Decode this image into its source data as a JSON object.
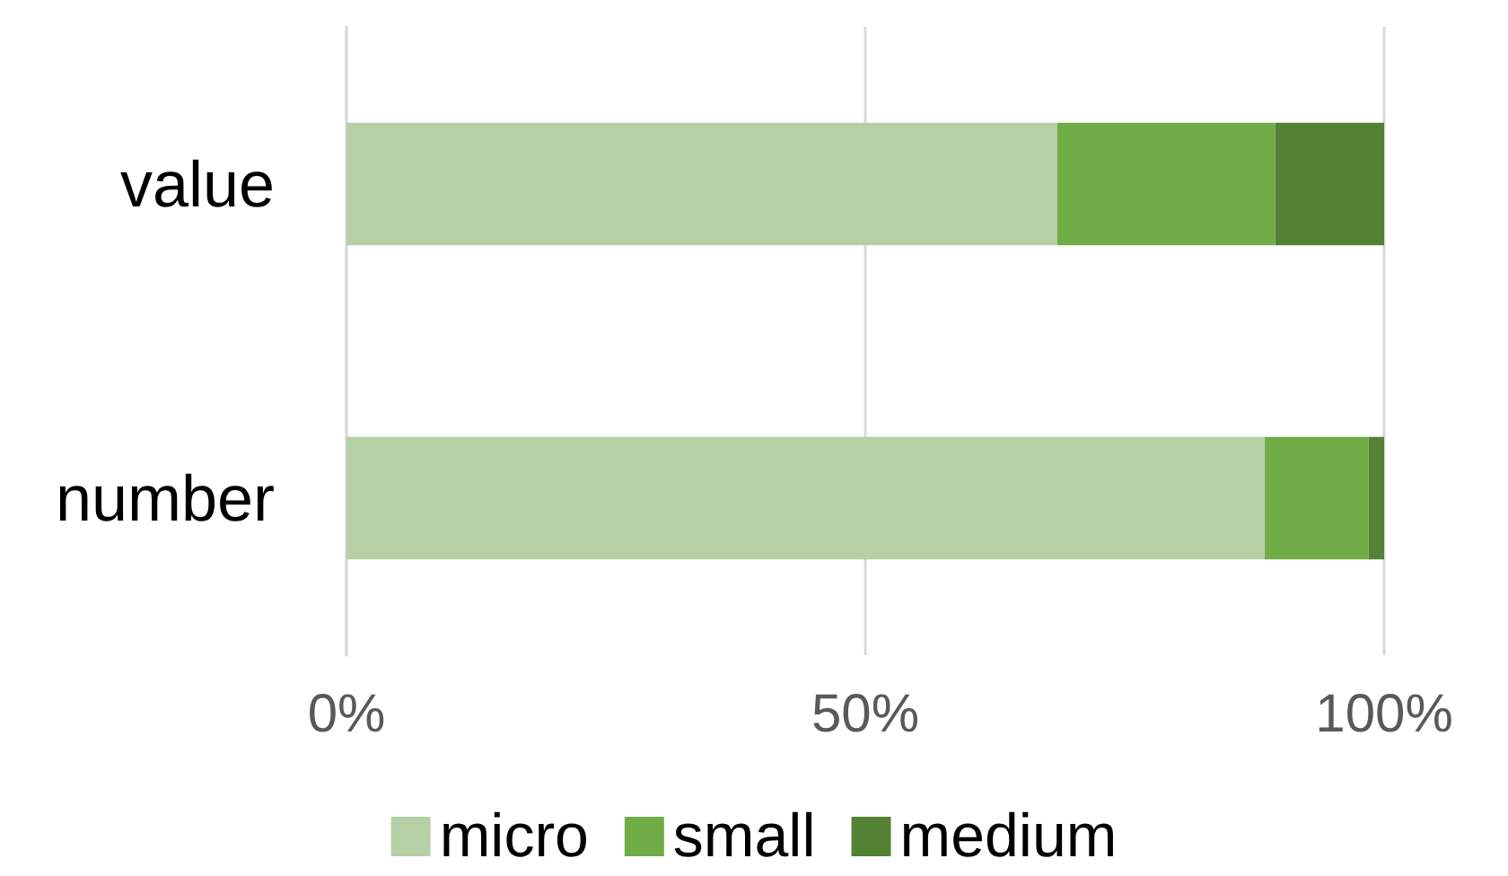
{
  "chart_data": {
    "type": "bar",
    "orientation": "horizontal",
    "stacked": true,
    "categories": [
      "value",
      "number"
    ],
    "series": [
      {
        "name": "micro",
        "color": "#b5d0a5",
        "values": [
          68.5,
          88.5
        ]
      },
      {
        "name": "small",
        "color": "#70ad47",
        "values": [
          21,
          10
        ]
      },
      {
        "name": "medium",
        "color": "#548235",
        "values": [
          10.5,
          1.5
        ]
      }
    ],
    "xlim": [
      0,
      100
    ],
    "xticks": [
      {
        "value": 0,
        "label": "0%"
      },
      {
        "value": 50,
        "label": "50%"
      },
      {
        "value": 100,
        "label": "100%"
      }
    ],
    "grid": "x",
    "legend": "bottom"
  }
}
